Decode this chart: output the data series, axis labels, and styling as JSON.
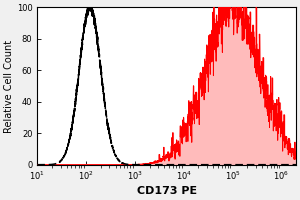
{
  "title": "",
  "xlabel": "CD173 PE",
  "ylabel": "Relative Cell Count",
  "xlim_log": [
    1.0,
    6.3
  ],
  "ylim": [
    0,
    100
  ],
  "yticks": [
    0,
    20,
    40,
    60,
    80,
    100
  ],
  "ytick_labels": [
    "0",
    "20",
    "40",
    "60",
    "80",
    "100"
  ],
  "background_color": "#f0f0f0",
  "plot_bg_color": "#ffffff",
  "dashed_peak_log": 2.08,
  "dashed_sigma": 0.22,
  "dashed_height": 100,
  "dashed_color": "#000000",
  "red_peak_log": 5.0,
  "red_sigma": 0.55,
  "red_height": 100,
  "red_color": "#ff0000",
  "red_fill_color": "#ffbbbb",
  "xtick_positions": [
    1,
    2,
    3,
    4,
    5,
    6
  ],
  "xtick_labels": [
    "10$^1$",
    "10$^2$",
    "10$^3$",
    "10$^4$",
    "10$^5$",
    "10$^6$"
  ]
}
